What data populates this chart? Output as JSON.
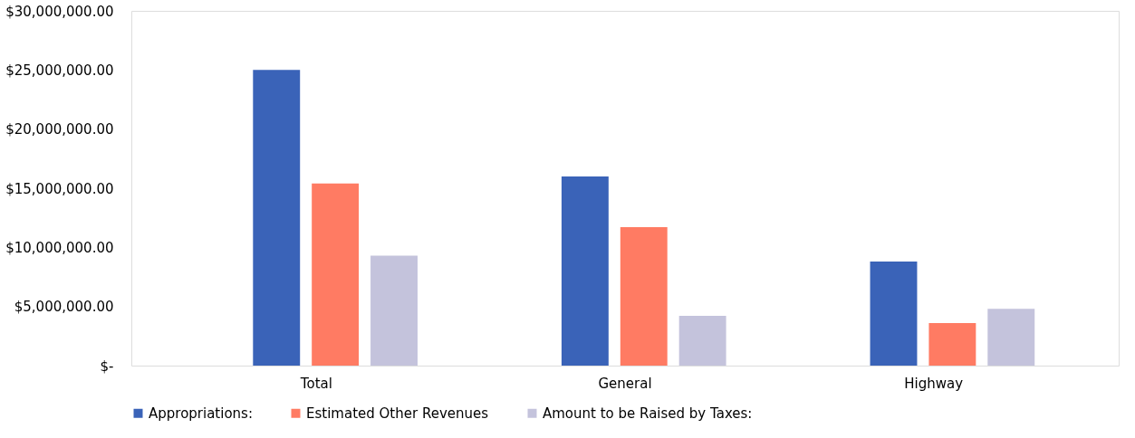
{
  "chart_data": {
    "type": "bar",
    "categories": [
      "Total",
      "General",
      "Highway"
    ],
    "series": [
      {
        "name": "Appropriations:",
        "color": "#3a63b8",
        "values": [
          25000000,
          16000000,
          8800000
        ]
      },
      {
        "name": "Estimated Other Revenues",
        "color": "#ff7b63",
        "values": [
          15400000,
          11700000,
          3600000
        ]
      },
      {
        "name": "Amount to be Raised by Taxes:",
        "color": "#c4c3dc",
        "values": [
          9300000,
          4200000,
          4800000
        ]
      }
    ],
    "ylim": [
      0,
      30000000
    ],
    "yticks": [
      {
        "value": 0,
        "label": "$-"
      },
      {
        "value": 5000000,
        "label": "$5,000,000.00"
      },
      {
        "value": 10000000,
        "label": "$10,000,000.00"
      },
      {
        "value": 15000000,
        "label": "$15,000,000.00"
      },
      {
        "value": 20000000,
        "label": "$20,000,000.00"
      },
      {
        "value": 25000000,
        "label": "$25,000,000.00"
      },
      {
        "value": 30000000,
        "label": "$30,000,000.00"
      }
    ],
    "grid": false,
    "legend": "bottom"
  }
}
